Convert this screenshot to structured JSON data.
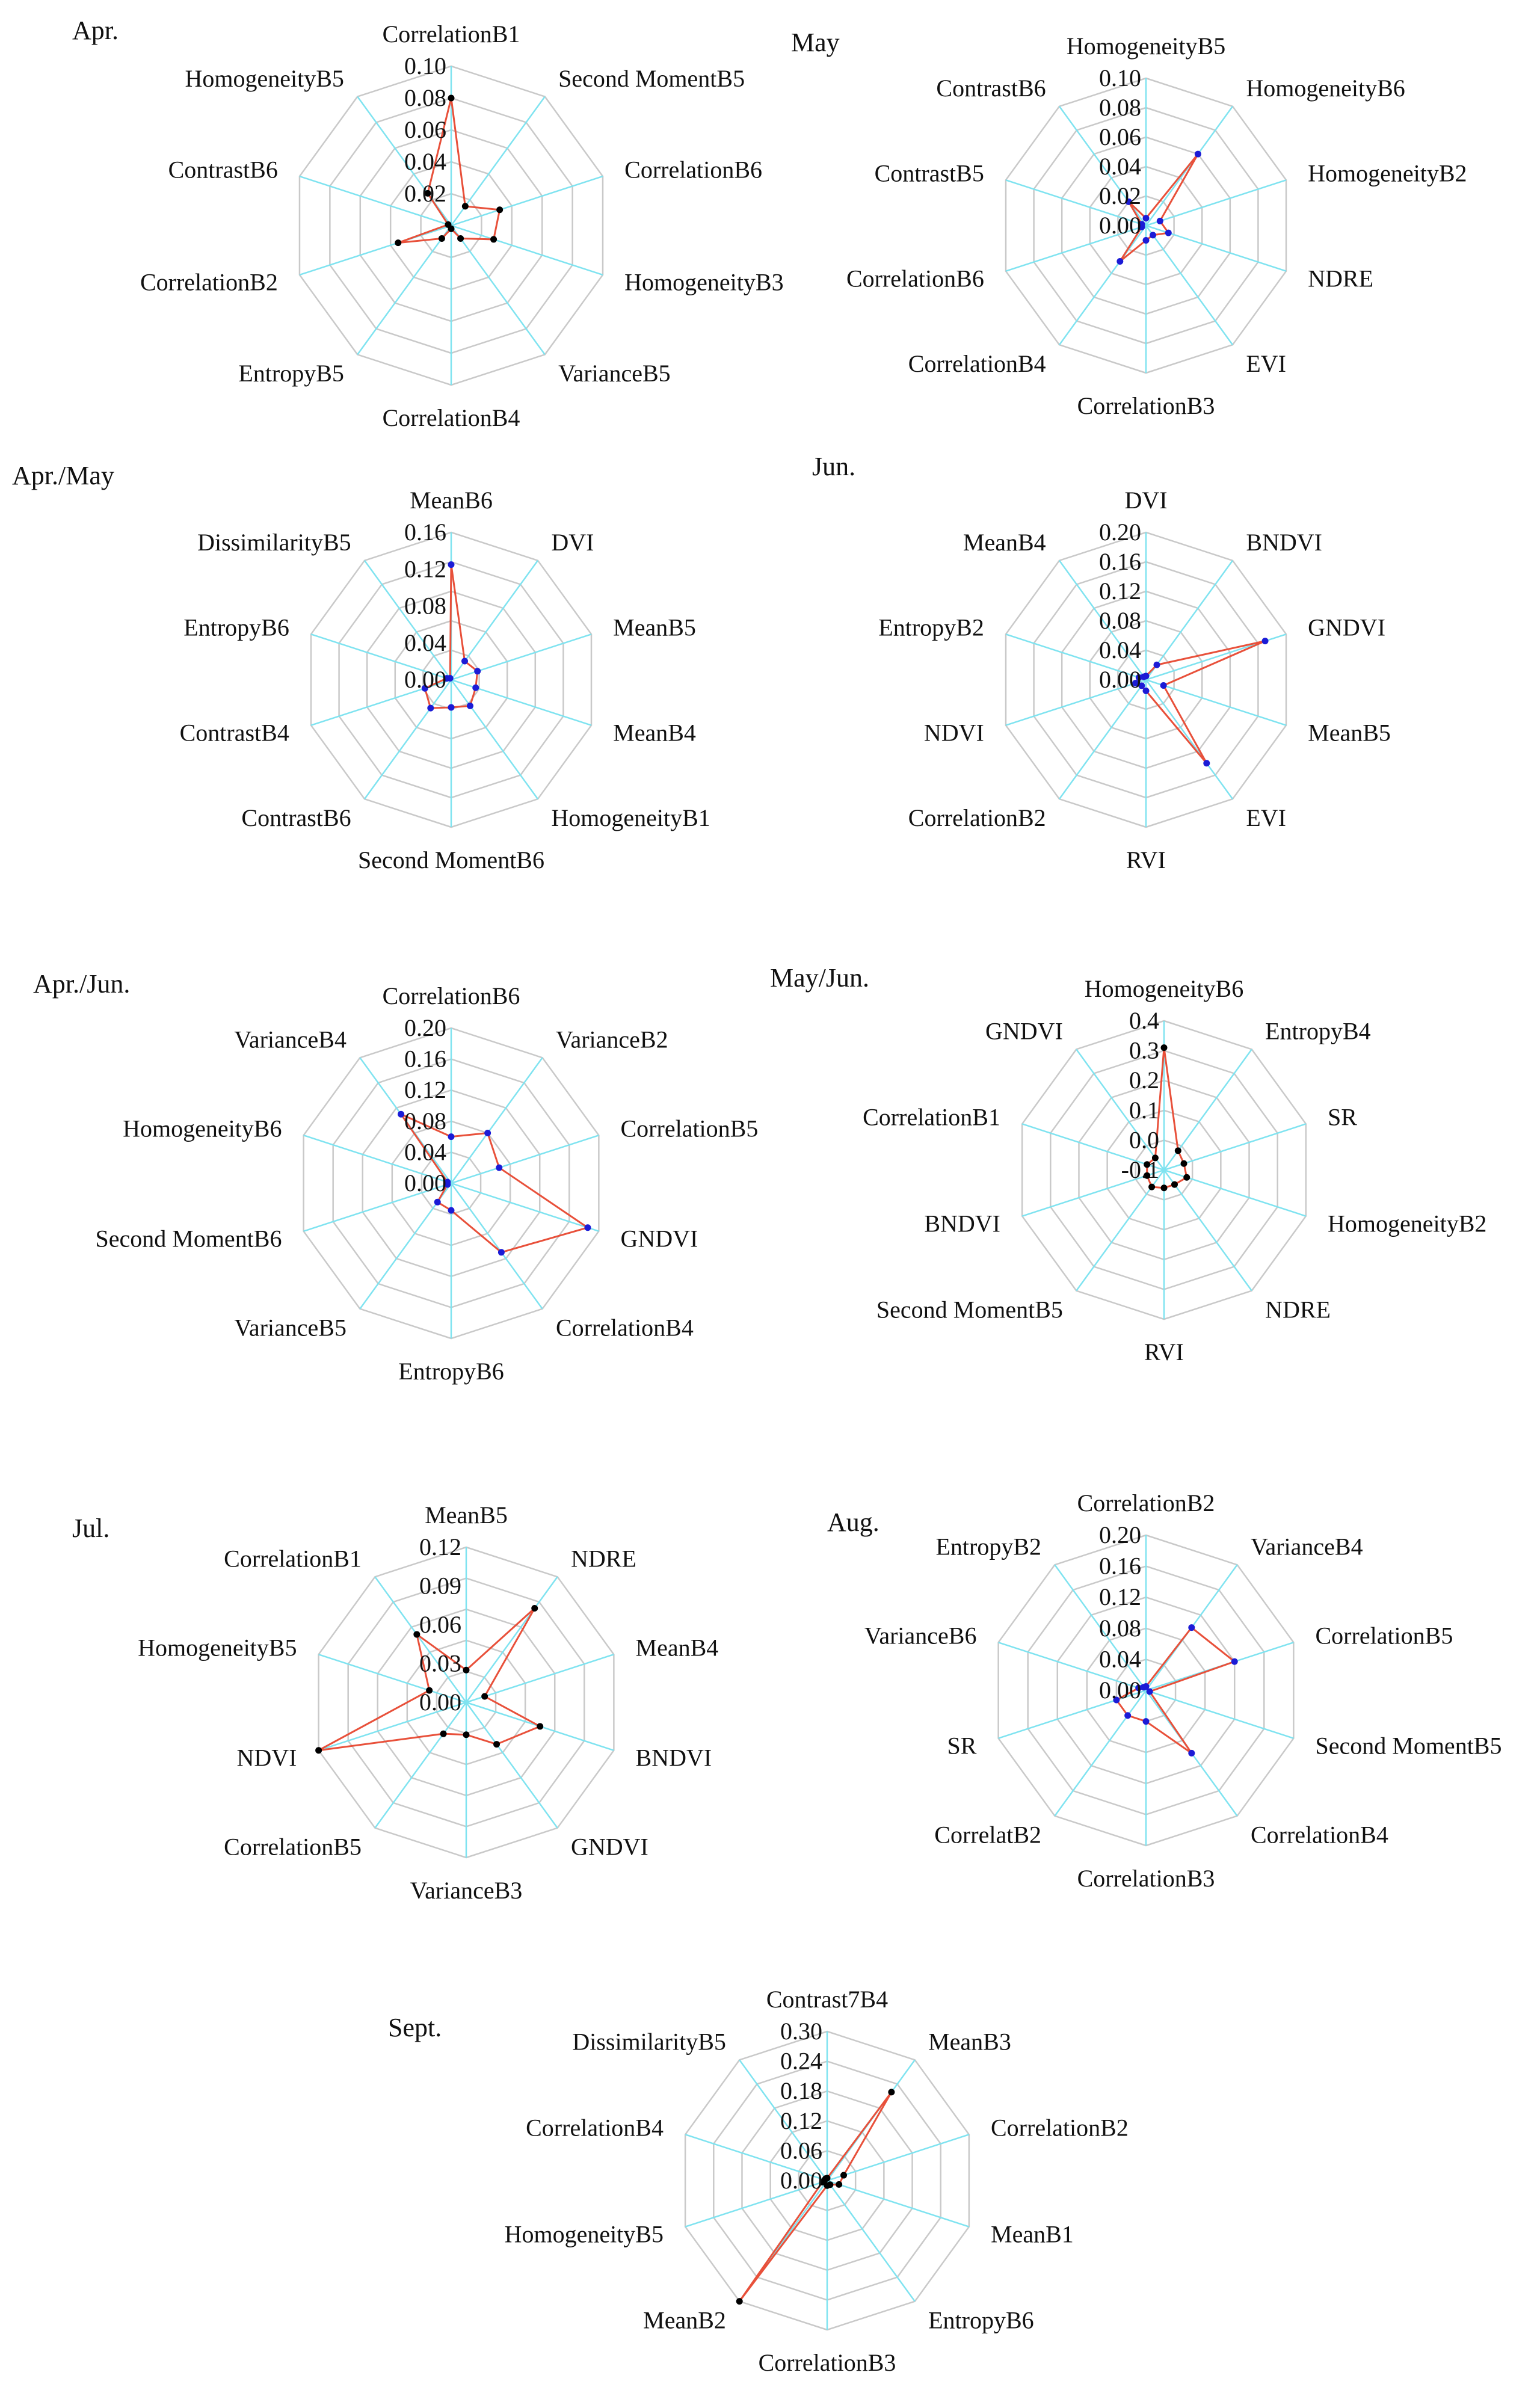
{
  "figure": {
    "description_title": ""
  },
  "chart_data": [
    {
      "type": "radar",
      "title": "Apr.",
      "ticks": [
        "0.10",
        "0.08",
        "0.06",
        "0.04",
        "0.02"
      ],
      "tick_values": [
        0.1,
        0.08,
        0.06,
        0.04,
        0.02
      ],
      "rmin": 0,
      "rmax": 0.1,
      "axes": [
        "CorrelationB1",
        "Second MomentB5",
        "CorrelationB6",
        "HomogeneityB3",
        "VarianceB5",
        "CorrelationB4",
        "EntropyB5",
        "CorrelationB2",
        "ContrastB6",
        "HomogeneityB5"
      ],
      "values": [
        0.08,
        0.015,
        0.032,
        0.028,
        0.01,
        0.002,
        0.01,
        0.035,
        0.002,
        0.025
      ],
      "marker_color": "#000000",
      "line_color": "#e8503a"
    },
    {
      "type": "radar",
      "title": "May",
      "ticks": [
        "0.10",
        "0.08",
        "0.06",
        "0.04",
        "0.02",
        "0.00"
      ],
      "tick_values": [
        0.1,
        0.08,
        0.06,
        0.04,
        0.02,
        0.0
      ],
      "rmin": 0,
      "rmax": 0.1,
      "axes": [
        "HomogeneityB5",
        "HomogeneityB6",
        "HomogeneityB2",
        "NDRE",
        "EVI",
        "CorrelationB3",
        "CorrelationB4",
        "CorrelationB6",
        "ContrastB5",
        "ContrastB6"
      ],
      "values": [
        0.005,
        0.06,
        0.01,
        0.016,
        0.008,
        0.01,
        0.03,
        0.003,
        0.003,
        0.02
      ],
      "marker_color": "#1b1bd6",
      "line_color": "#e8503a"
    },
    {
      "type": "radar",
      "title": "Apr./May",
      "ticks": [
        "0.16",
        "0.12",
        "0.08",
        "0.04",
        "0.00"
      ],
      "tick_values": [
        0.16,
        0.12,
        0.08,
        0.04,
        0.0
      ],
      "rmin": 0,
      "rmax": 0.16,
      "axes": [
        "MeanB6",
        "DVI",
        "MeanB5",
        "MeanB4",
        "HomogeneityB1",
        "Second MomentB6",
        "ContrastB6",
        "ContrastB4",
        "EntropyB6",
        "DissimilarityB5"
      ],
      "values": [
        0.125,
        0.025,
        0.03,
        0.028,
        0.035,
        0.03,
        0.038,
        0.03,
        0.005,
        0.002
      ],
      "marker_color": "#1b1bd6",
      "line_color": "#e8503a"
    },
    {
      "type": "radar",
      "title": "Jun.",
      "ticks": [
        "0.20",
        "0.16",
        "0.12",
        "0.08",
        "0.04",
        "0.00"
      ],
      "tick_values": [
        0.2,
        0.16,
        0.12,
        0.08,
        0.04,
        0.0
      ],
      "rmin": 0,
      "rmax": 0.2,
      "axes": [
        "DVI",
        "BNDVI",
        "GNDVI",
        "MeanB5",
        "EVI",
        "RVI",
        "CorrelationB2",
        "NDVI",
        "EntropyB2",
        "MeanB4"
      ],
      "values": [
        0.005,
        0.025,
        0.17,
        0.025,
        0.14,
        0.015,
        0.01,
        0.015,
        0.01,
        0.005
      ],
      "marker_color": "#1b1bd6",
      "line_color": "#e8503a"
    },
    {
      "type": "radar",
      "title": "Apr./Jun.",
      "ticks": [
        "0.20",
        "0.16",
        "0.12",
        "0.08",
        "0.04",
        "0.00"
      ],
      "tick_values": [
        0.2,
        0.16,
        0.12,
        0.08,
        0.04,
        0.0
      ],
      "rmin": 0,
      "rmax": 0.2,
      "axes": [
        "CorrelationB6",
        "VarianceB2",
        "CorrelationB5",
        "GNDVI",
        "CorrelationB4",
        "EntropyB6",
        "VarianceB5",
        "Second MomentB6",
        "HomogeneityB6",
        "VarianceB4"
      ],
      "values": [
        0.06,
        0.08,
        0.065,
        0.185,
        0.11,
        0.035,
        0.03,
        0.005,
        0.005,
        0.11
      ],
      "marker_color": "#1b1bd6",
      "line_color": "#e8503a"
    },
    {
      "type": "radar",
      "title": "May/Jun.",
      "ticks": [
        "0.4",
        "0.3",
        "0.2",
        "0.1",
        "0.0",
        "-0.1"
      ],
      "tick_values": [
        0.4,
        0.3,
        0.2,
        0.1,
        0.0,
        -0.1
      ],
      "rmin": -0.1,
      "rmax": 0.4,
      "axes": [
        "HomogeneityB6",
        "EntropyB4",
        "SR",
        "HomogeneityB2",
        "NDRE",
        "RVI",
        "Second MomentB5",
        "BNDVI",
        "CorrelationB1",
        "GNDVI"
      ],
      "values": [
        0.31,
        -0.02,
        -0.03,
        -0.02,
        -0.04,
        -0.04,
        -0.03,
        -0.04,
        -0.04,
        -0.05
      ],
      "marker_color": "#000000",
      "line_color": "#e8503a"
    },
    {
      "type": "radar",
      "title": "Jul.",
      "ticks": [
        "0.12",
        "0.09",
        "0.06",
        "0.03",
        "0.00"
      ],
      "tick_values": [
        0.12,
        0.09,
        0.06,
        0.03,
        0.0
      ],
      "rmin": 0,
      "rmax": 0.12,
      "axes": [
        "MeanB5",
        "NDRE",
        "MeanB4",
        "BNDVI",
        "GNDVI",
        "VarianceB3",
        "CorrelationB5",
        "NDVI",
        "HomogeneityB5",
        "CorrelationB1"
      ],
      "values": [
        0.025,
        0.09,
        0.015,
        0.06,
        0.04,
        0.025,
        0.03,
        0.12,
        0.03,
        0.065
      ],
      "marker_color": "#000000",
      "line_color": "#e8503a"
    },
    {
      "type": "radar",
      "title": "Aug.",
      "ticks": [
        "0.20",
        "0.16",
        "0.12",
        "0.08",
        "0.04",
        "0.00"
      ],
      "tick_values": [
        0.2,
        0.16,
        0.12,
        0.08,
        0.04,
        0.0
      ],
      "rmin": 0,
      "rmax": 0.2,
      "axes": [
        "CorrelationB2",
        "VarianceB4",
        "CorrelationB5",
        "Second MomentB5",
        "CorrelationB4",
        "CorrelationB3",
        "CorrelatB2",
        "SR",
        "VarianceB6",
        "EntropyB2"
      ],
      "values": [
        0.005,
        0.1,
        0.12,
        0.005,
        0.1,
        0.04,
        0.04,
        0.04,
        0.01,
        0.005
      ],
      "marker_color": "#1b1bd6",
      "line_color": "#e8503a"
    },
    {
      "type": "radar",
      "title": "Sept.",
      "ticks": [
        "0.30",
        "0.24",
        "0.18",
        "0.12",
        "0.06",
        "0.00"
      ],
      "tick_values": [
        0.3,
        0.24,
        0.18,
        0.12,
        0.06,
        0.0
      ],
      "rmin": 0,
      "rmax": 0.3,
      "axes": [
        "Contrast7B4",
        "MeanB3",
        "CorrelationB2",
        "MeanB1",
        "EntropyB6",
        "CorrelationB3",
        "MeanB2",
        "HomogeneityB5",
        "CorrelationB4",
        "DissimilarityB5"
      ],
      "values": [
        0.005,
        0.22,
        0.035,
        0.025,
        0.01,
        0.01,
        0.3,
        0.01,
        0.005,
        0.005
      ],
      "marker_color": "#000000",
      "line_color": "#e8503a"
    }
  ]
}
